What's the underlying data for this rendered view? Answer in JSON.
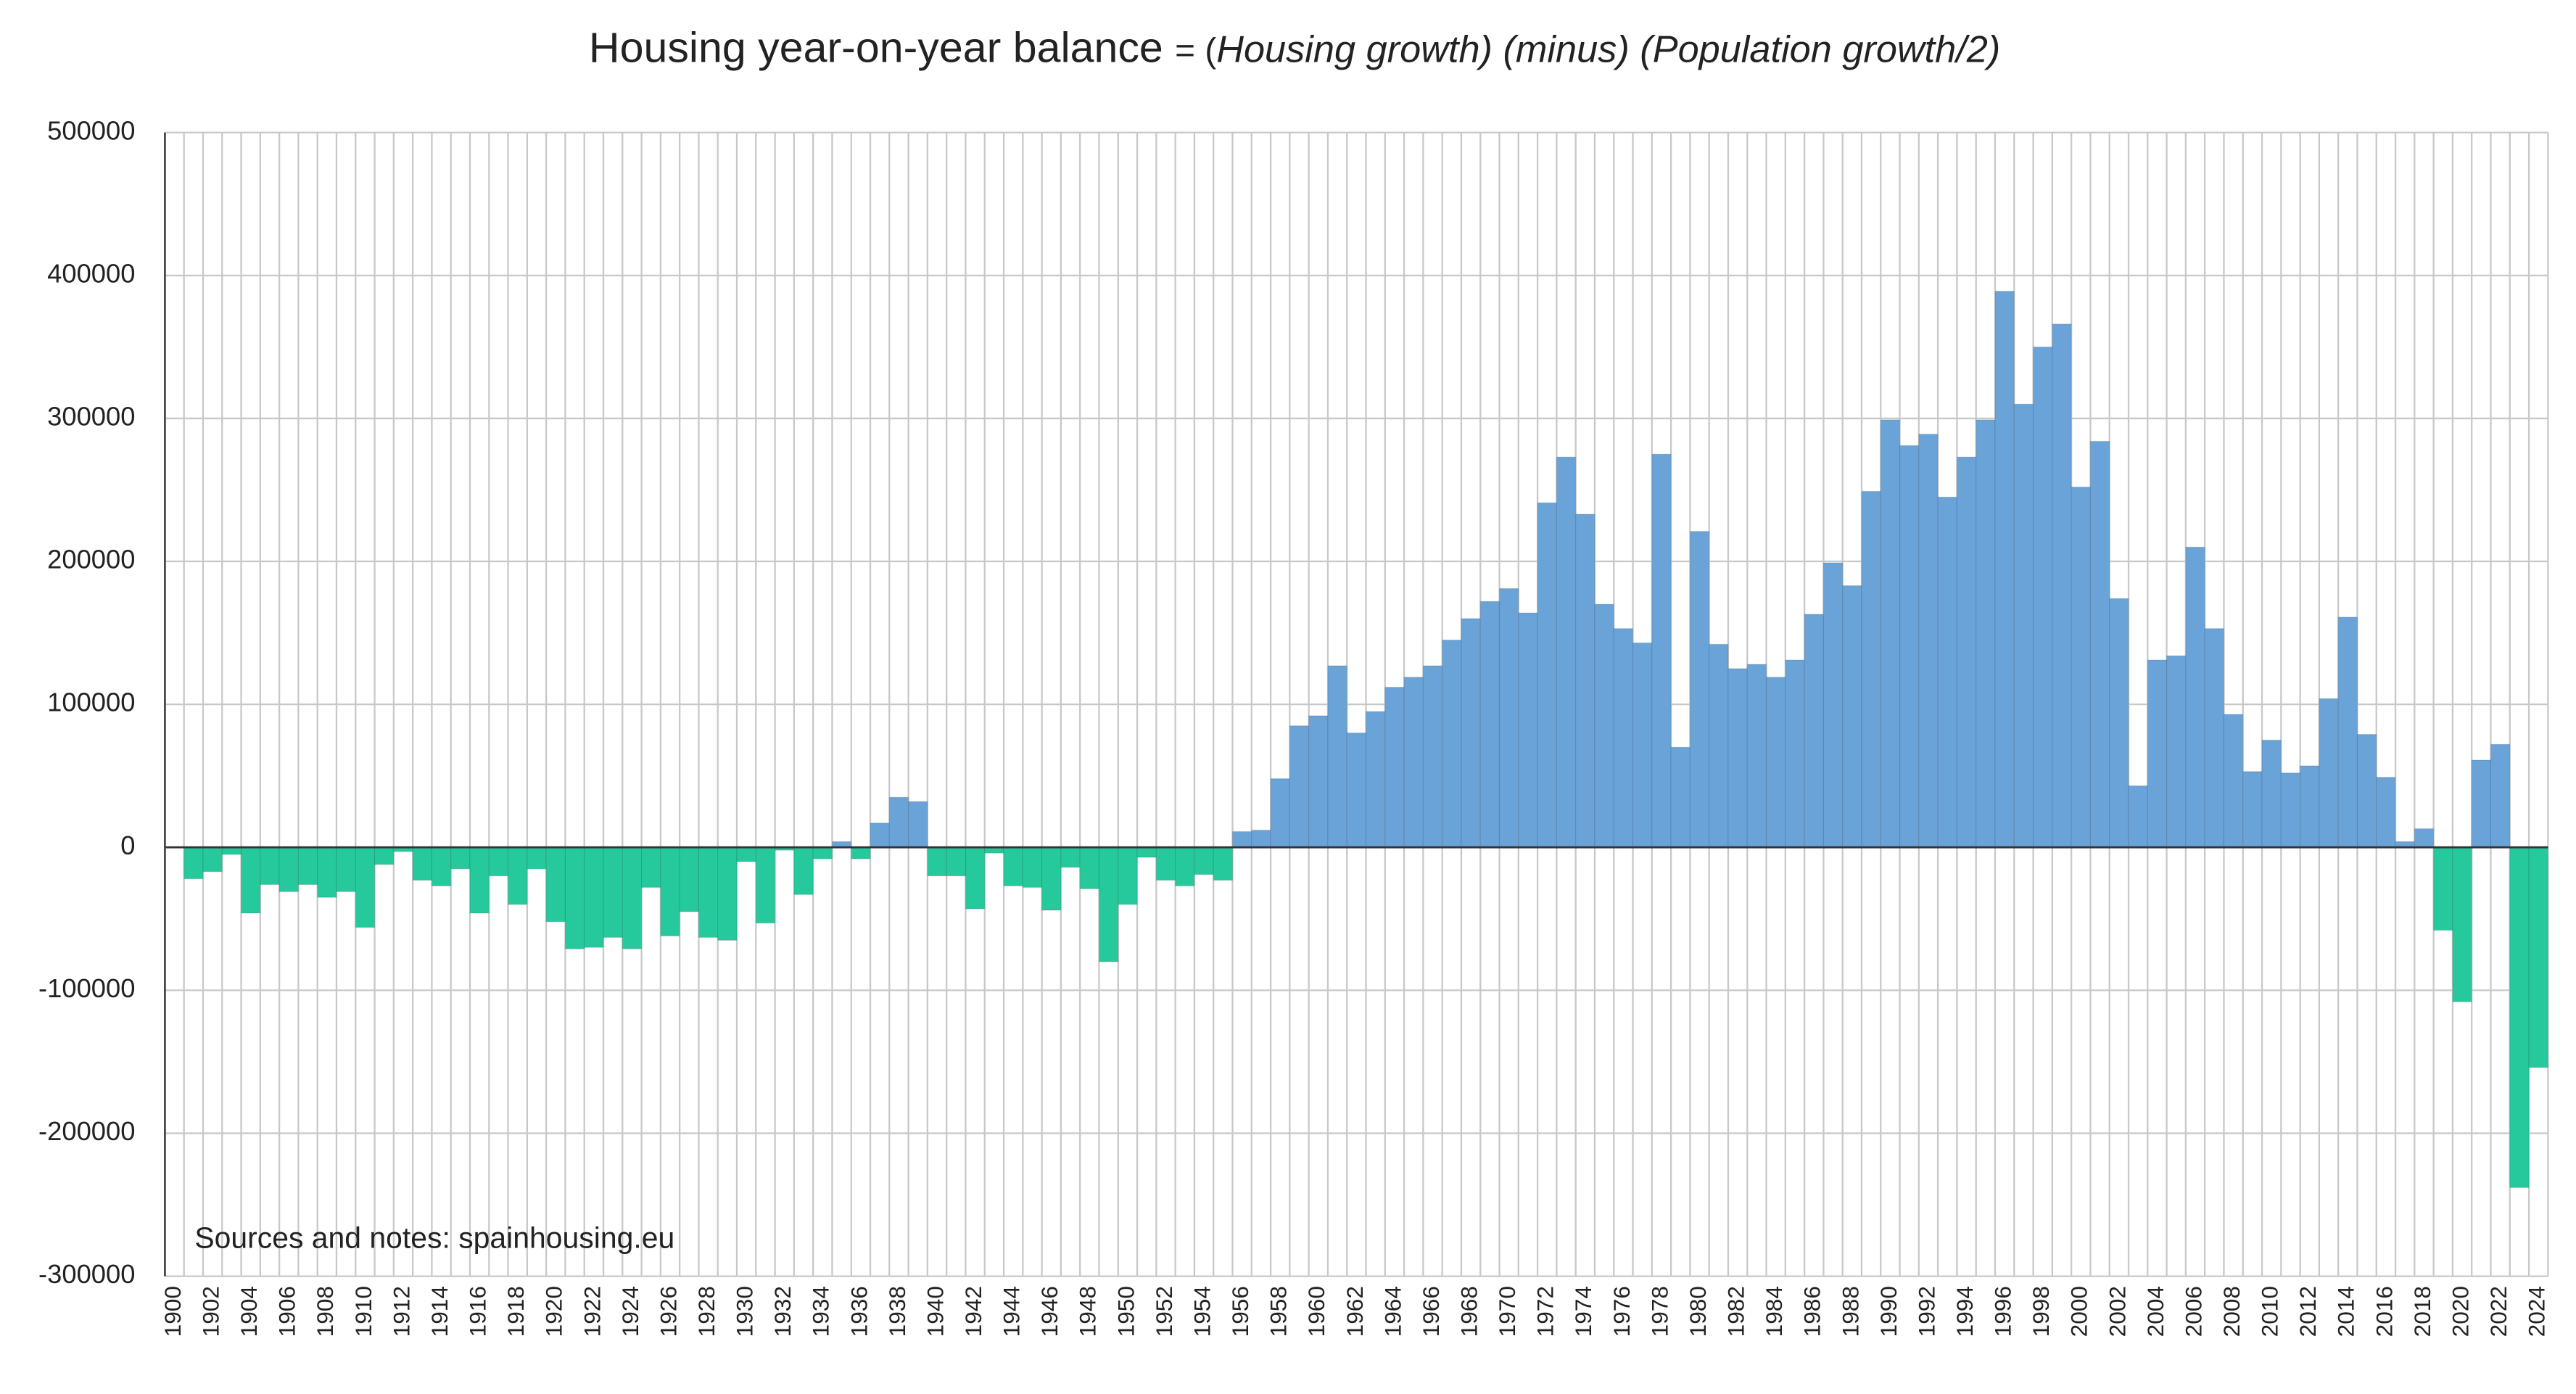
{
  "chart_data": {
    "type": "bar",
    "title": "Housing year-on-year balance",
    "formula": [
      "= (",
      "Housing growth) (minus) (Population growth/2)"
    ],
    "annotation": "Sources and notes: spainhousing.eu",
    "categories": [
      "1900",
      null,
      "1902",
      null,
      "1904",
      null,
      "1906",
      null,
      "1908",
      null,
      "1910",
      null,
      "1912",
      null,
      "1914",
      null,
      "1916",
      null,
      "1918",
      null,
      "1920",
      null,
      "1922",
      null,
      "1924",
      null,
      "1926",
      null,
      "1928",
      null,
      "1930",
      null,
      "1932",
      null,
      "1934",
      null,
      "1936",
      null,
      "1938",
      null,
      "1940",
      null,
      "1942",
      null,
      "1944",
      null,
      "1946",
      null,
      "1948",
      null,
      "1950",
      null,
      "1952",
      null,
      "1954",
      null,
      "1956",
      null,
      "1958",
      null,
      "1960",
      null,
      "1962",
      null,
      "1964",
      null,
      "1966",
      null,
      "1968",
      null,
      "1970",
      null,
      "1972",
      null,
      "1974",
      null,
      "1976",
      null,
      "1978",
      null,
      "1980",
      null,
      "1982",
      null,
      "1984",
      null,
      "1986",
      null,
      "1988",
      null,
      "1990",
      null,
      "1992",
      null,
      "1994",
      null,
      "1996",
      null,
      "1998",
      null,
      "2000",
      null,
      "2002",
      null,
      "2004",
      null,
      "2006",
      null,
      "2008",
      null,
      "2010",
      null,
      "2012",
      null,
      "2014",
      null,
      "2016",
      null,
      "2018",
      null,
      "2020",
      null,
      "2022",
      null,
      "2024"
    ],
    "values": [
      null,
      -22000,
      -17000,
      -5000,
      -46000,
      -26000,
      -31000,
      -26000,
      -35000,
      -31000,
      -56000,
      -12000,
      -3000,
      -23000,
      -27000,
      -15000,
      -46000,
      -20000,
      -40000,
      -15000,
      -52000,
      -71000,
      -70000,
      -63000,
      -71000,
      -28000,
      -62000,
      -45000,
      -63000,
      -65000,
      -10000,
      -53000,
      -2000,
      -33000,
      -8000,
      4000,
      -8000,
      17000,
      35000,
      32000,
      -20000,
      -20000,
      -43000,
      -4000,
      -27000,
      -28000,
      -44000,
      -14000,
      -29000,
      -80000,
      -40000,
      -7000,
      -23000,
      -27000,
      -19000,
      -23000,
      11000,
      12000,
      48000,
      85000,
      92000,
      127000,
      80000,
      95000,
      112000,
      119000,
      127000,
      145000,
      160000,
      172000,
      181000,
      164000,
      241000,
      273000,
      233000,
      170000,
      153000,
      143000,
      275000,
      70000,
      221000,
      142000,
      125000,
      128000,
      119000,
      131000,
      163000,
      199000,
      183000,
      249000,
      299000,
      281000,
      289000,
      245000,
      273000,
      299000,
      389000,
      310000,
      350000,
      366000,
      252000,
      284000,
      174000,
      43000,
      131000,
      134000,
      210000,
      153000,
      93000,
      53000,
      75000,
      52000,
      57000,
      104000,
      161000,
      79000,
      49000,
      4000,
      13000,
      -58000,
      -108000,
      61000,
      72000,
      -238000,
      -154000
    ],
    "positive_color": "#6aa3d8",
    "negative_color": "#26c99c",
    "ylim": [
      -300000,
      500000
    ],
    "yticks": [
      -300000,
      -200000,
      -100000,
      0,
      100000,
      200000,
      300000,
      400000,
      500000
    ],
    "grid": true
  }
}
